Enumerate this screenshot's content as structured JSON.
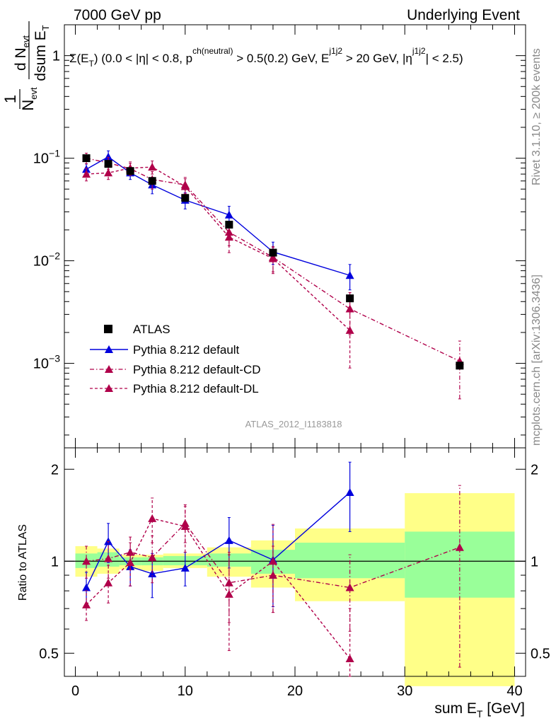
{
  "header": {
    "left": "7000 GeV pp",
    "right": "Underlying Event"
  },
  "side_labels": {
    "rivet": "Rivet 3.1.10, ≥ 200k events",
    "mcplots": "mcplots.cern.ch [arXiv:1306.3436]"
  },
  "analysis_id": "ATLAS_2012_I1183818",
  "colors": {
    "atlas": "#000000",
    "pythia_default": "#0000dd",
    "pythia_cd": "#b0004a",
    "pythia_dl": "#b0004a",
    "band_green": "#99ff99",
    "band_yellow": "#ffff88"
  },
  "chart_data": [
    {
      "type": "scatter",
      "panel": "main",
      "title": "Σ(E_T) (0.0 < |η| < 0.8, p_T^ch(neutral) > 0.5(0.2) GeV, E_T^j1j2 > 20 GeV, |η^j1j2| < 2.5)",
      "ylabel": "1/N_evt dN_evt/dsum E_T [GeV^-1]",
      "yscale": "log",
      "xlim": [
        -1,
        41
      ],
      "ylim": [
        0.00015,
        2
      ],
      "ytick_labels": [
        "10^-3",
        "10^-2",
        "10^-1",
        "1"
      ],
      "legend_position": "lower-left",
      "legend": [
        "ATLAS",
        "Pythia 8.212 default",
        "Pythia 8.212 default-CD",
        "Pythia 8.212 default-DL"
      ],
      "series": [
        {
          "name": "ATLAS",
          "style": "square",
          "x": [
            1,
            3,
            5,
            7,
            10,
            14,
            18,
            25,
            35
          ],
          "y": [
            0.1,
            0.088,
            0.075,
            0.06,
            0.041,
            0.0225,
            0.012,
            0.0043,
            0.00095
          ]
        },
        {
          "name": "Pythia 8.212 default",
          "style": "solid",
          "x": [
            1,
            3,
            5,
            7,
            10,
            14,
            18,
            25
          ],
          "y": [
            0.078,
            0.103,
            0.072,
            0.055,
            0.039,
            0.028,
            0.0122,
            0.0072
          ],
          "err": [
            0.01,
            0.015,
            0.01,
            0.01,
            0.007,
            0.006,
            0.003,
            0.002
          ]
        },
        {
          "name": "Pythia 8.212 default-CD",
          "style": "dashdot",
          "x": [
            1,
            3,
            5,
            7,
            10,
            14,
            18,
            25,
            35
          ],
          "y": [
            0.1,
            0.09,
            0.079,
            0.062,
            0.055,
            0.019,
            0.0108,
            0.0034,
            0.00105
          ],
          "err": [
            0.012,
            0.012,
            0.01,
            0.012,
            0.01,
            0.005,
            0.003,
            0.0015,
            0.0006
          ]
        },
        {
          "name": "Pythia 8.212 default-DL",
          "style": "dashed",
          "x": [
            1,
            3,
            5,
            7,
            10,
            14,
            18,
            25
          ],
          "y": [
            0.07,
            0.072,
            0.08,
            0.082,
            0.053,
            0.017,
            0.0105,
            0.0021
          ],
          "err": [
            0.01,
            0.01,
            0.012,
            0.012,
            0.01,
            0.005,
            0.003,
            0.0012
          ]
        }
      ]
    },
    {
      "type": "scatter",
      "panel": "ratio",
      "ylabel": "Ratio to ATLAS",
      "xlabel": "sum E_T [GeV]",
      "xlim": [
        -1,
        41
      ],
      "ylim": [
        0.42,
        2.35
      ],
      "ytick_labels": [
        "0.5",
        "1",
        "2"
      ],
      "xtick_labels": [
        "0",
        "10",
        "20",
        "30",
        "40"
      ],
      "bands": {
        "edges": [
          0,
          2,
          4,
          6,
          8,
          12,
          16,
          20,
          30,
          40
        ],
        "green": [
          [
            0.95,
            1.06
          ],
          [
            0.96,
            1.07
          ],
          [
            0.97,
            1.03
          ],
          [
            0.97,
            1.03
          ],
          [
            0.97,
            1.04
          ],
          [
            0.96,
            1.06
          ],
          [
            0.91,
            1.09
          ],
          [
            0.88,
            1.15
          ],
          [
            0.76,
            1.25
          ]
        ],
        "yellow": [
          [
            0.89,
            1.12
          ],
          [
            0.91,
            1.1
          ],
          [
            0.94,
            1.05
          ],
          [
            0.93,
            1.05
          ],
          [
            0.95,
            1.06
          ],
          [
            0.89,
            1.11
          ],
          [
            0.82,
            1.17
          ],
          [
            0.74,
            1.28
          ],
          [
            0.39,
            1.67
          ]
        ]
      },
      "series": [
        {
          "name": "Pythia 8.212 default",
          "x": [
            1,
            3,
            5,
            7,
            10,
            14,
            18,
            25
          ],
          "y": [
            0.82,
            1.16,
            0.96,
            0.91,
            0.95,
            1.17,
            1.01,
            1.68
          ],
          "err": [
            0.1,
            0.17,
            0.13,
            0.15,
            0.12,
            0.22,
            0.3,
            0.43
          ]
        },
        {
          "name": "Pythia 8.212 default-CD",
          "x": [
            1,
            3,
            5,
            7,
            10,
            14,
            18,
            25,
            35
          ],
          "y": [
            1.0,
            1.02,
            1.07,
            1.03,
            1.33,
            0.85,
            0.9,
            0.82,
            1.11
          ],
          "err": [
            0.12,
            0.14,
            0.13,
            0.18,
            0.18,
            0.22,
            0.22,
            0.23,
            0.66
          ]
        },
        {
          "name": "Pythia 8.212 default-DL",
          "x": [
            1,
            3,
            5,
            7,
            10,
            14,
            18,
            25
          ],
          "y": [
            0.72,
            0.85,
            0.99,
            1.38,
            1.3,
            0.78,
            1.0,
            0.48
          ],
          "err": [
            0.08,
            0.12,
            0.16,
            0.23,
            0.23,
            0.27,
            0.32,
            0.22
          ]
        }
      ]
    }
  ]
}
